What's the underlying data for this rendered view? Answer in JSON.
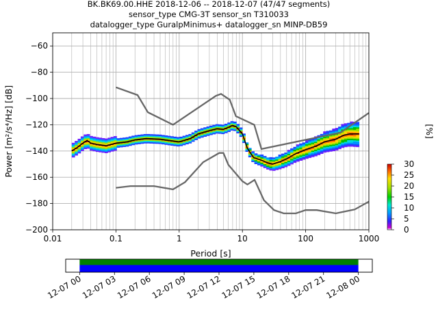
{
  "chart_data": {
    "type": "heatmap",
    "title_lines": [
      "BK.BK69.00.HHE   2018-12-06 -- 2018-12-07  (47/47 segments)",
      "sensor_type CMG-3T sensor_sn T310033",
      "datalogger_type GuralpMinimus+ datalogger_sn MINP-DB59"
    ],
    "xlabel": "Period [s]",
    "ylabel": "Power [m²/s⁴/Hz] [dB]",
    "x_scale": "log",
    "xlim": [
      0.01,
      1000
    ],
    "ylim": [
      -200,
      -50
    ],
    "grid": true,
    "x_ticks": [
      {
        "value": 0.01,
        "label": "0.01"
      },
      {
        "value": 0.1,
        "label": "0.1"
      },
      {
        "value": 1,
        "label": "1"
      },
      {
        "value": 10,
        "label": "10"
      },
      {
        "value": 100,
        "label": "100"
      },
      {
        "value": 1000,
        "label": "1000"
      }
    ],
    "y_ticks": [
      {
        "value": -60,
        "label": "−60"
      },
      {
        "value": -80,
        "label": "−80"
      },
      {
        "value": -100,
        "label": "−100"
      },
      {
        "value": -120,
        "label": "−120"
      },
      {
        "value": -140,
        "label": "−140"
      },
      {
        "value": -160,
        "label": "−160"
      },
      {
        "value": -180,
        "label": "−180"
      },
      {
        "value": -200,
        "label": "−200"
      }
    ],
    "noise_models": [
      {
        "points": [
          [
            0.1,
            -91.5
          ],
          [
            0.22,
            -97.4
          ],
          [
            0.32,
            -110.5
          ],
          [
            0.8,
            -120
          ],
          [
            3.8,
            -98
          ],
          [
            4.6,
            -96.5
          ],
          [
            6.3,
            -101
          ],
          [
            7.9,
            -113.5
          ],
          [
            15.4,
            -120
          ],
          [
            20,
            -138.5
          ],
          [
            354.8,
            -126
          ],
          [
            1000,
            -111
          ]
        ]
      },
      {
        "points": [
          [
            0.1,
            -168
          ],
          [
            0.17,
            -166.7
          ],
          [
            0.4,
            -166.7
          ],
          [
            0.8,
            -169.2
          ],
          [
            1.24,
            -163.7
          ],
          [
            2.4,
            -148.5
          ],
          [
            4.3,
            -141.5
          ],
          [
            5,
            -141.5
          ],
          [
            6,
            -150.5
          ],
          [
            10,
            -163
          ],
          [
            12,
            -165.5
          ],
          [
            15.6,
            -162
          ],
          [
            21.9,
            -177.5
          ],
          [
            31.6,
            -185
          ],
          [
            45,
            -187.5
          ],
          [
            70,
            -187.5
          ],
          [
            100,
            -185
          ],
          [
            150,
            -185
          ],
          [
            300,
            -187.5
          ],
          [
            600,
            -184.5
          ],
          [
            1000,
            -178.5
          ]
        ]
      }
    ],
    "mode_curve": [
      [
        0.02,
        -140
      ],
      [
        0.025,
        -137
      ],
      [
        0.03,
        -134
      ],
      [
        0.035,
        -132
      ],
      [
        0.04,
        -134
      ],
      [
        0.05,
        -135
      ],
      [
        0.07,
        -136
      ],
      [
        0.1,
        -134
      ],
      [
        0.15,
        -133
      ],
      [
        0.2,
        -131.5
      ],
      [
        0.3,
        -130.5
      ],
      [
        0.5,
        -131
      ],
      [
        0.7,
        -132
      ],
      [
        1,
        -133
      ],
      [
        1.5,
        -130.5
      ],
      [
        2,
        -127
      ],
      [
        3,
        -124.5
      ],
      [
        4,
        -123
      ],
      [
        5,
        -123.5
      ],
      [
        6,
        -122
      ],
      [
        7,
        -120.5
      ],
      [
        8,
        -121.5
      ],
      [
        10,
        -127
      ],
      [
        12,
        -138
      ],
      [
        15,
        -145
      ],
      [
        20,
        -147
      ],
      [
        25,
        -149
      ],
      [
        30,
        -150
      ],
      [
        40,
        -148
      ],
      [
        50,
        -146
      ],
      [
        70,
        -142
      ],
      [
        100,
        -139
      ],
      [
        150,
        -136
      ],
      [
        200,
        -133
      ],
      [
        300,
        -131
      ],
      [
        400,
        -128
      ],
      [
        500,
        -127
      ],
      [
        700,
        -127
      ]
    ],
    "colorbar": {
      "label": "[%]",
      "range": [
        0,
        30
      ],
      "ticks": [
        {
          "value": 0,
          "label": "0"
        },
        {
          "value": 5,
          "label": "5"
        },
        {
          "value": 10,
          "label": "10"
        },
        {
          "value": 15,
          "label": "15"
        },
        {
          "value": 20,
          "label": "20"
        },
        {
          "value": 25,
          "label": "25"
        },
        {
          "value": 30,
          "label": "30"
        }
      ]
    },
    "timeline": {
      "ticks": [
        {
          "hour": 0,
          "label": "12-07 00"
        },
        {
          "hour": 3,
          "label": "12-07 03"
        },
        {
          "hour": 6,
          "label": "12-07 06"
        },
        {
          "hour": 9,
          "label": "12-07 09"
        },
        {
          "hour": 12,
          "label": "12-07 12"
        },
        {
          "hour": 15,
          "label": "12-07 15"
        },
        {
          "hour": 18,
          "label": "12-07 18"
        },
        {
          "hour": 21,
          "label": "12-07 21"
        },
        {
          "hour": 24,
          "label": "12-08 00"
        }
      ],
      "range_hours": [
        -1.2,
        25.2
      ],
      "coverage_hours": [
        0,
        24
      ],
      "colors": {
        "upper": "#008000",
        "lower": "#0000ff"
      }
    },
    "colors": {
      "noise_model": "#666666",
      "mode_curve": "#000000",
      "grid": "#b0b0b0"
    }
  }
}
